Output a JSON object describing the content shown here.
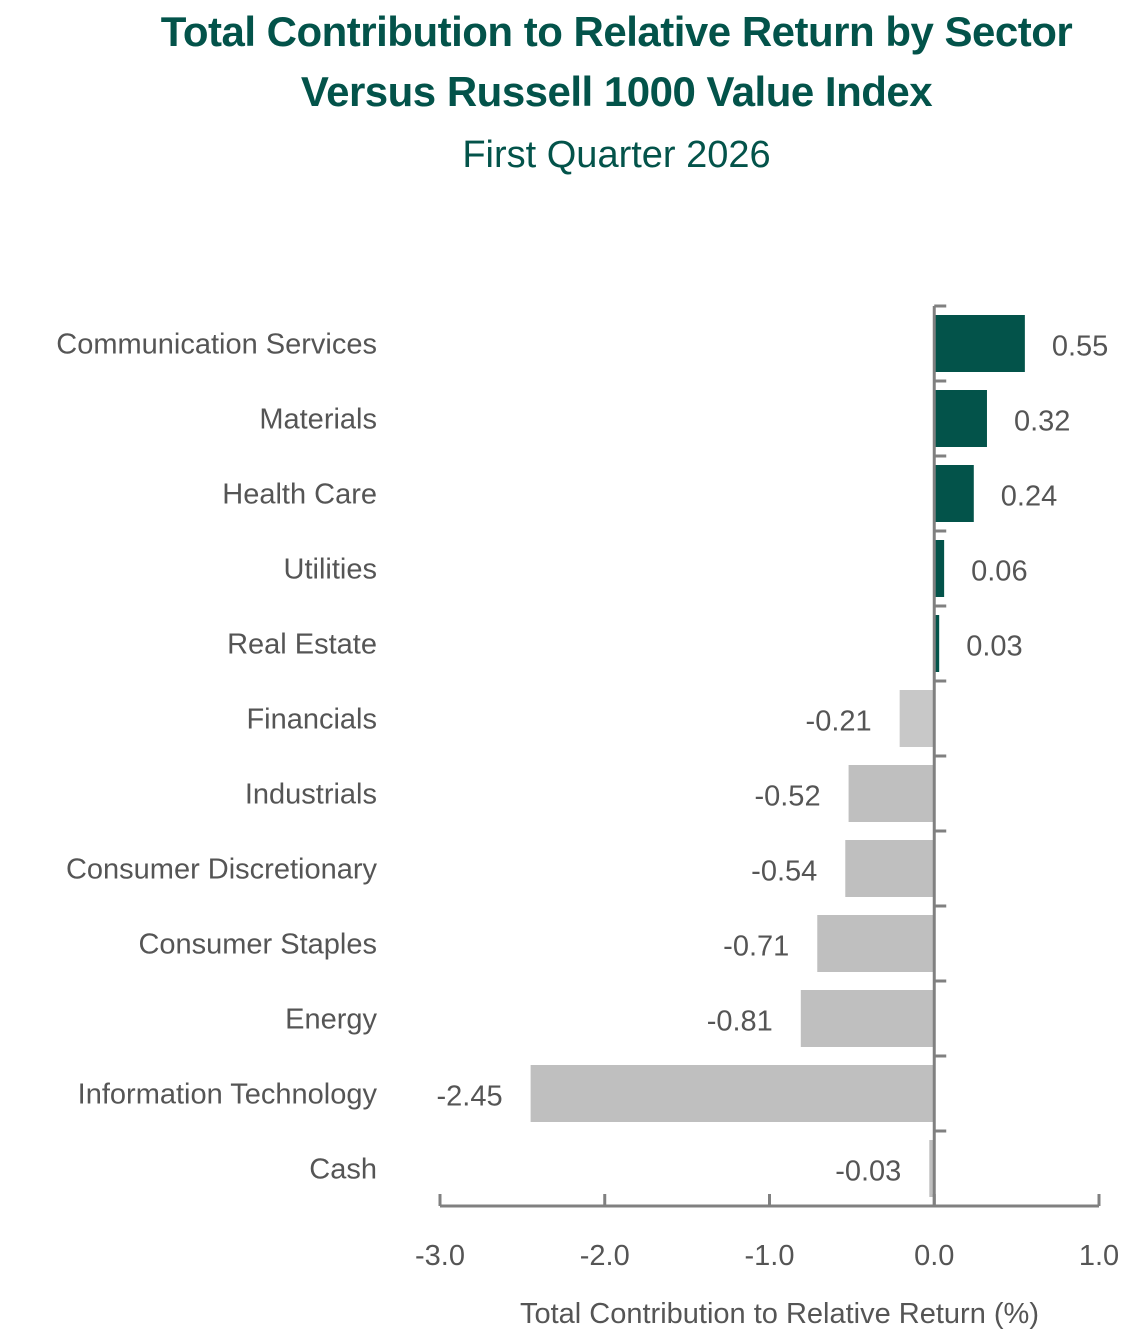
{
  "chart_data": {
    "type": "bar",
    "orientation": "horizontal",
    "title": "Total Contribution to Relative Return by Sector",
    "title_line2": "Versus Russell 1000 Value Index",
    "subtitle": "First Quarter 2026",
    "xlabel": "Total Contribution to Relative Return (%)",
    "ylabel": "",
    "xlim": [
      -3.0,
      1.0
    ],
    "xticks": [
      -3.0,
      -2.0,
      -1.0,
      0.0,
      1.0
    ],
    "xtick_labels": [
      "-3.0",
      "-2.0",
      "-1.0",
      "0.0",
      "1.0"
    ],
    "grid": false,
    "legend": "none",
    "categories": [
      "Communication Services",
      "Materials",
      "Health Care",
      "Utilities",
      "Real Estate",
      "Financials",
      "Industrials",
      "Consumer Discretionary",
      "Consumer Staples",
      "Energy",
      "Information Technology",
      "Cash"
    ],
    "values": [
      0.55,
      0.32,
      0.24,
      0.06,
      0.03,
      -0.21,
      -0.52,
      -0.54,
      -0.71,
      -0.81,
      -2.45,
      -0.03
    ],
    "value_labels": [
      "0.55",
      "0.32",
      "0.24",
      "0.06",
      "0.03",
      "-0.21",
      "-0.52",
      "-0.54",
      "-0.71",
      "-0.81",
      "-2.45",
      "-0.03"
    ],
    "colors": {
      "positive": "#03534A",
      "negative": "#BFBFBF",
      "financials": "#C8C8C8",
      "title": "#03534A",
      "text": "#555555",
      "axis": "#808080"
    }
  }
}
